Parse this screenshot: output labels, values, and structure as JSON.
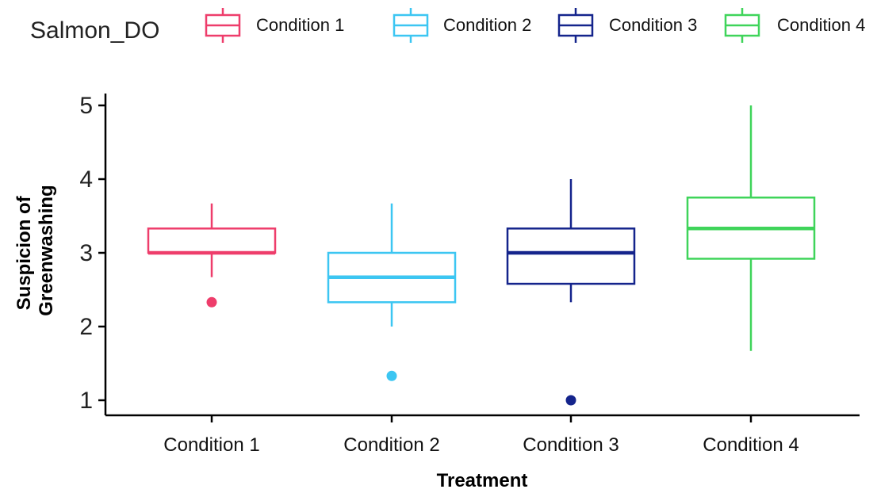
{
  "chart_data": {
    "type": "boxplot",
    "legend": {
      "title": "Salmon_DO",
      "placement": "top",
      "entries": [
        "Condition 1",
        "Condition 2",
        "Condition 3",
        "Condition 4"
      ]
    },
    "xlabel": "Treatment",
    "ylabel_lines": [
      "Suspicion of",
      "Greenwashing"
    ],
    "ylim": [
      0.8,
      5.2
    ],
    "yticks": [
      1,
      2,
      3,
      4,
      5
    ],
    "categories": [
      "Condition 1",
      "Condition 2",
      "Condition 3",
      "Condition 4"
    ],
    "grid": false,
    "series": [
      {
        "name": "Condition 1",
        "color": "#EE3D6B",
        "whisker_low": 2.67,
        "q1": 3.0,
        "median": 3.0,
        "q3": 3.33,
        "whisker_high": 3.67,
        "outliers": [
          2.33
        ]
      },
      {
        "name": "Condition 2",
        "color": "#3CC6F2",
        "whisker_low": 2.0,
        "q1": 2.33,
        "median": 2.67,
        "q3": 3.0,
        "whisker_high": 3.67,
        "outliers": [
          1.33
        ]
      },
      {
        "name": "Condition 3",
        "color": "#14248C",
        "whisker_low": 2.33,
        "q1": 2.58,
        "median": 3.0,
        "q3": 3.33,
        "whisker_high": 4.0,
        "outliers": [
          1.0
        ]
      },
      {
        "name": "Condition 4",
        "color": "#3FD45A",
        "whisker_low": 1.67,
        "q1": 2.92,
        "median": 3.33,
        "q3": 3.75,
        "whisker_high": 5.0,
        "outliers": []
      }
    ]
  }
}
